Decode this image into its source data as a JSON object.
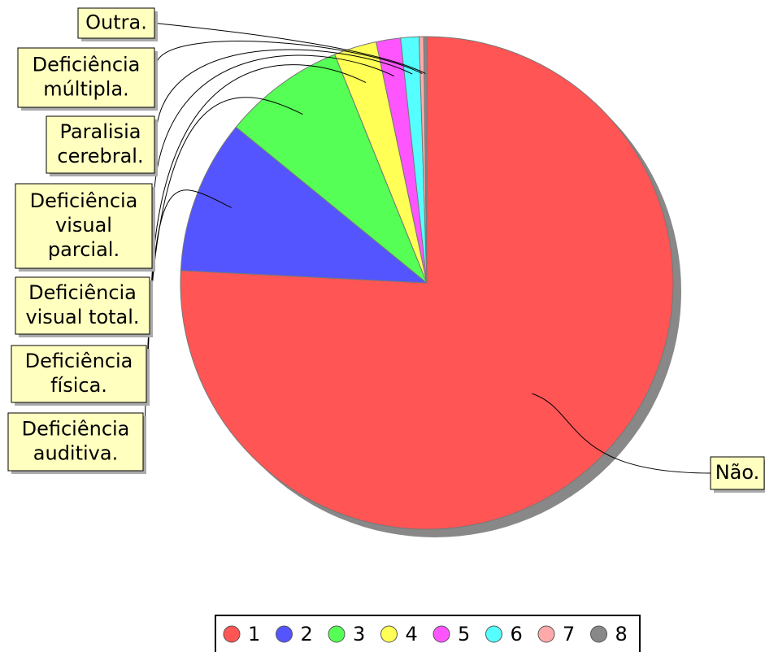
{
  "chart_data": {
    "type": "pie",
    "categories": [
      [
        "Não."
      ],
      [
        "Deficiência",
        "auditiva."
      ],
      [
        "Deficiência",
        "física."
      ],
      [
        "Deficiência",
        "visual total."
      ],
      [
        "Deficiência",
        "visual",
        "parcial."
      ],
      [
        "Paralisia",
        "cerebral."
      ],
      [
        "Deficiência",
        "múltipla."
      ],
      [
        "Outra."
      ]
    ],
    "values": [
      75.8,
      10.1,
      8.0,
      2.8,
      1.6,
      1.2,
      0.3,
      0.2
    ],
    "colors": [
      "#ff5555",
      "#5555ff",
      "#55ff55",
      "#ffff55",
      "#ff55ff",
      "#55ffff",
      "#ffaaaa",
      "#888888"
    ],
    "legend": [
      "1",
      "2",
      "3",
      "4",
      "5",
      "6",
      "7",
      "8"
    ]
  }
}
